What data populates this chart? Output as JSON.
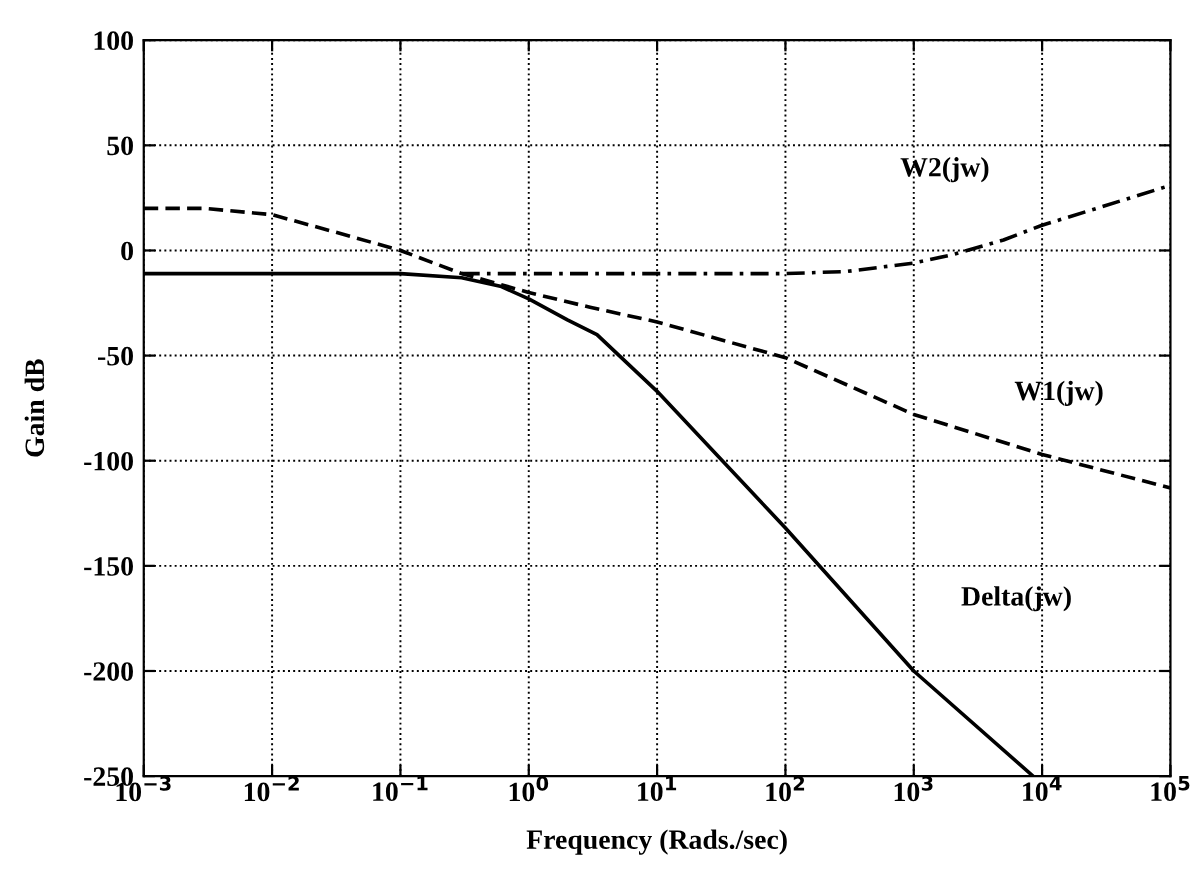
{
  "chart_data": {
    "type": "line",
    "xlabel": "Frequency (Rads./sec)",
    "ylabel": "Gain dB",
    "log": "x",
    "grid": true,
    "legend": false,
    "xlim": [
      0.001,
      100000
    ],
    "ylim": [
      -250,
      100
    ],
    "xticks": [
      {
        "value": 0.001,
        "label": "10$^{−3}$"
      },
      {
        "value": 0.01,
        "label": "10$^{−2}$"
      },
      {
        "value": 0.1,
        "label": "10$^{−1}$"
      },
      {
        "value": 1,
        "label": "10$^{0}$"
      },
      {
        "value": 10,
        "label": "10$^{1}$"
      },
      {
        "value": 100,
        "label": "10$^{2}$"
      },
      {
        "value": 1000,
        "label": "10$^{3}$"
      },
      {
        "value": 10000,
        "label": "10$^{4}$"
      },
      {
        "value": 100000,
        "label": "10$^{5}$"
      }
    ],
    "yticks": [
      -250,
      -200,
      -150,
      -100,
      -50,
      0,
      50,
      100
    ],
    "series": [
      {
        "name": "W2(jw)",
        "color": "#000000",
        "line_style": "dashdot",
        "x": [
          0.3,
          1,
          10,
          100,
          300,
          1000,
          2000,
          5000,
          10000,
          30000,
          100000
        ],
        "values": [
          -11,
          -11,
          -11,
          -11,
          -10,
          -6,
          -2,
          5,
          12,
          21,
          31
        ]
      },
      {
        "name": "W1(jw)",
        "color": "#000000",
        "line_style": "dashed",
        "x": [
          0.001,
          0.003,
          0.01,
          0.03,
          0.1,
          0.3,
          1,
          3,
          10,
          100,
          1000,
          10000,
          100000
        ],
        "values": [
          20,
          20,
          17,
          9,
          0,
          -11,
          -20,
          -27,
          -34,
          -51,
          -78,
          -97,
          -113
        ]
      },
      {
        "name": "Delta(jw)",
        "color": "#000000",
        "line_style": "solid",
        "x": [
          0.001,
          0.1,
          0.3,
          0.6,
          1,
          2,
          3.4,
          10,
          100,
          1000,
          8500
        ],
        "values": [
          -11,
          -11,
          -13,
          -17,
          -23,
          -33,
          -40,
          -67,
          -132,
          -200,
          -250
        ]
      }
    ]
  }
}
